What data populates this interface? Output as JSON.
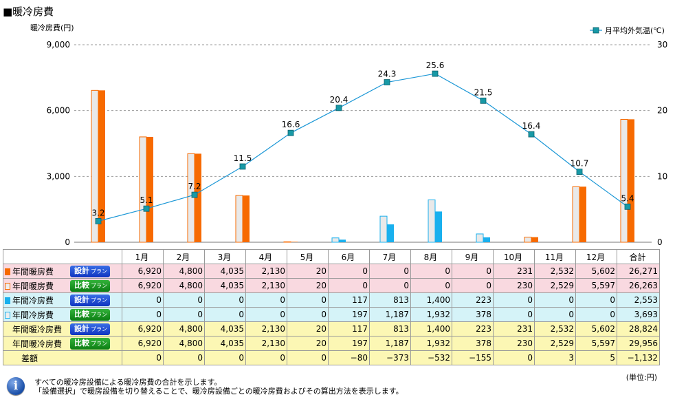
{
  "title": "■暖冷房費",
  "chart_data": {
    "type": "bar+line",
    "y_left_label": "暖冷房費(円)",
    "y_left_range": [
      0,
      9000
    ],
    "y_left_ticks": [
      "0",
      "3,000",
      "6,000",
      "9,000"
    ],
    "y_right_range": [
      0,
      30
    ],
    "y_right_ticks": [
      "0",
      "10",
      "20",
      "30"
    ],
    "categories": [
      "1月",
      "2月",
      "3月",
      "4月",
      "5月",
      "6月",
      "7月",
      "8月",
      "9月",
      "10月",
      "11月",
      "12月"
    ],
    "series": [
      {
        "name": "年間暖房費 設計プラン",
        "kind": "bar",
        "color": "#f76a00",
        "values": [
          6920,
          4800,
          4035,
          2130,
          20,
          0,
          0,
          0,
          0,
          231,
          2532,
          5602
        ]
      },
      {
        "name": "年間暖房費 比較プラン",
        "kind": "bar",
        "color": "#e9e9e9",
        "stroke": "#f76a00",
        "values": [
          6920,
          4800,
          4035,
          2130,
          20,
          0,
          0,
          0,
          0,
          230,
          2529,
          5597
        ]
      },
      {
        "name": "年間冷房費 設計プラン",
        "kind": "bar",
        "color": "#19b0ee",
        "values": [
          0,
          0,
          0,
          0,
          0,
          117,
          813,
          1400,
          223,
          0,
          0,
          0
        ]
      },
      {
        "name": "年間冷房費 比較プラン",
        "kind": "bar",
        "color": "#e9e9e9",
        "stroke": "#19b0ee",
        "values": [
          0,
          0,
          0,
          0,
          0,
          197,
          1187,
          1932,
          378,
          0,
          0,
          0
        ]
      }
    ],
    "temperature": {
      "name": "月平均外気温(℃)",
      "color": "#1b97d6",
      "marker": "#1799a6",
      "values": [
        3.2,
        5.1,
        7.2,
        11.5,
        16.6,
        20.4,
        24.3,
        25.6,
        21.5,
        16.4,
        10.7,
        5.4
      ],
      "labels": [
        "3.2",
        "5.1",
        "7.2",
        "11.5",
        "16.6",
        "20.4",
        "24.3",
        "25.6",
        "21.5",
        "16.4",
        "10.7",
        "5.4"
      ]
    },
    "grid": "horizontal dashed",
    "legend_position": "top-right"
  },
  "table": {
    "months": [
      "1月",
      "2月",
      "3月",
      "4月",
      "5月",
      "6月",
      "7月",
      "8月",
      "9月",
      "10月",
      "11月",
      "12月"
    ],
    "total_label": "合計",
    "badge_design": "設計",
    "badge_compare": "比較",
    "badge_suffix": "プラン",
    "rows": [
      {
        "label": "年間暖房費",
        "badge": "design",
        "swatch": "o",
        "group": "r1",
        "values": [
          "6,920",
          "4,800",
          "4,035",
          "2,130",
          "20",
          "0",
          "0",
          "0",
          "0",
          "231",
          "2,532",
          "5,602"
        ],
        "total": "26,271"
      },
      {
        "label": "年間暖房費",
        "badge": "compare",
        "swatch": "ow",
        "group": "r1",
        "values": [
          "6,920",
          "4,800",
          "4,035",
          "2,130",
          "20",
          "0",
          "0",
          "0",
          "0",
          "230",
          "2,529",
          "5,597"
        ],
        "total": "26,263"
      },
      {
        "label": "年間冷房費",
        "badge": "design",
        "swatch": "b",
        "group": "r2",
        "values": [
          "0",
          "0",
          "0",
          "0",
          "0",
          "117",
          "813",
          "1,400",
          "223",
          "0",
          "0",
          "0"
        ],
        "total": "2,553"
      },
      {
        "label": "年間冷房費",
        "badge": "compare",
        "swatch": "bw",
        "group": "r2",
        "values": [
          "0",
          "0",
          "0",
          "0",
          "0",
          "197",
          "1,187",
          "1,932",
          "378",
          "0",
          "0",
          "0"
        ],
        "total": "3,693"
      },
      {
        "label": "年間暖冷房費",
        "badge": "design",
        "swatch": "none",
        "group": "r3",
        "values": [
          "6,920",
          "4,800",
          "4,035",
          "2,130",
          "20",
          "117",
          "813",
          "1,400",
          "223",
          "231",
          "2,532",
          "5,602"
        ],
        "total": "28,824"
      },
      {
        "label": "年間暖冷房費",
        "badge": "compare",
        "swatch": "none",
        "group": "r3",
        "values": [
          "6,920",
          "4,800",
          "4,035",
          "2,130",
          "20",
          "197",
          "1,187",
          "1,932",
          "378",
          "230",
          "2,529",
          "5,597"
        ],
        "total": "29,956"
      }
    ],
    "diff": {
      "label": "差額",
      "values": [
        "0",
        "0",
        "0",
        "0",
        "0",
        "−80",
        "−373",
        "−532",
        "−155",
        "0",
        "3",
        "5"
      ],
      "total": "−1,132"
    }
  },
  "unit": "(単位:円)",
  "info_icon": "info-icon",
  "notes": [
    "すべての暖冷房設備による暖冷房費の合計を示します。",
    "「設備選択」で暖房設備を切り替えることで、暖冷房設備ごとの暖冷房費およびその算出方法を表示します。"
  ]
}
